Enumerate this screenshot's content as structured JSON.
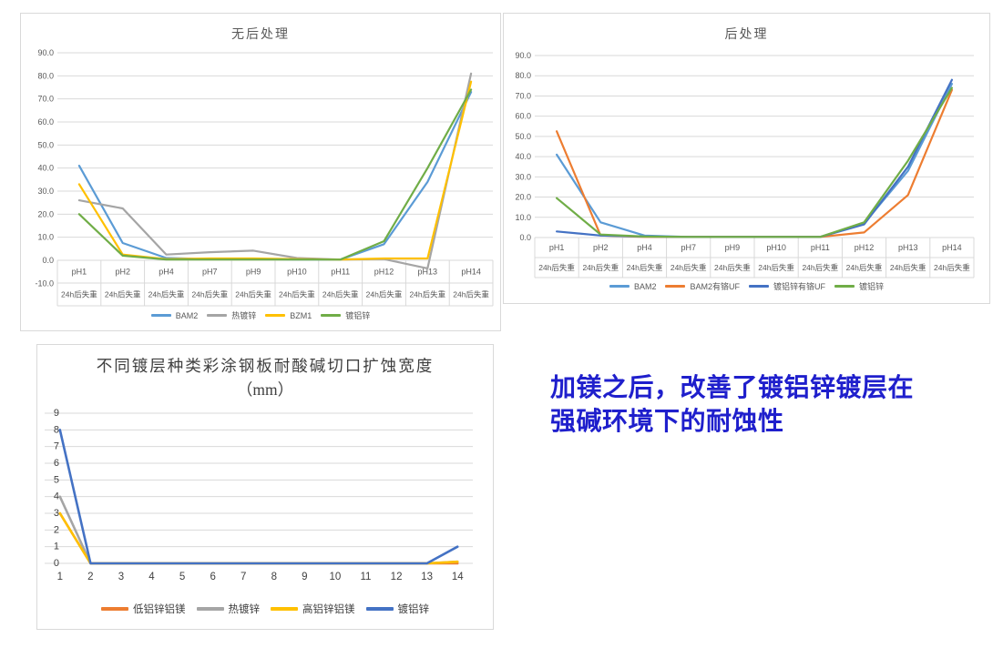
{
  "annotation": {
    "lines": [
      "加镁之后，改善了镀铝锌镀层在",
      "强碱环境下的耐蚀性"
    ],
    "color": "#1f1fcc"
  },
  "style": {
    "grid_color": "#d9d9d9",
    "axis_text_color": "#595959",
    "dark_text_color": "#3f3f3f"
  },
  "chart_data": [
    {
      "id": "no-post-treatment",
      "type": "line",
      "title": "无后处理",
      "categories": [
        "pH1",
        "pH2",
        "pH4",
        "pH7",
        "pH9",
        "pH10",
        "pH11",
        "pH12",
        "pH13",
        "pH14"
      ],
      "category_sublabel": "24h后失重",
      "ylim": [
        -10,
        90
      ],
      "ytick_step": 10,
      "ytick_decimals": 1,
      "grid": true,
      "legend_position": "bottom",
      "series": [
        {
          "name": "BAM2",
          "color": "#5b9bd5",
          "values": [
            41,
            7.5,
            1,
            0.5,
            0.5,
            0.3,
            0.3,
            7,
            34,
            73
          ]
        },
        {
          "name": "热镀锌",
          "color": "#a5a5a5",
          "values": [
            26,
            22.5,
            2.5,
            3.5,
            4.2,
            1,
            0.3,
            0.5,
            -3.5,
            81
          ]
        },
        {
          "name": "BZM1",
          "color": "#ffc000",
          "values": [
            33,
            2.5,
            0.5,
            0.8,
            0.8,
            0.5,
            0.3,
            0.8,
            0.8,
            77.5
          ]
        },
        {
          "name": "镀铝锌",
          "color": "#70ad47",
          "values": [
            20,
            2,
            0.3,
            0.3,
            0.3,
            0.3,
            0.3,
            8.3,
            40,
            74
          ]
        }
      ]
    },
    {
      "id": "post-treatment",
      "type": "line",
      "title": "后处理",
      "categories": [
        "pH1",
        "pH2",
        "pH4",
        "pH7",
        "pH9",
        "pH10",
        "pH11",
        "pH12",
        "pH13",
        "pH14"
      ],
      "category_sublabel": "24h后失重",
      "ylim": [
        0,
        90
      ],
      "ytick_step": 10,
      "ytick_decimals": 1,
      "grid": true,
      "legend_position": "bottom",
      "series": [
        {
          "name": "BAM2",
          "color": "#5b9bd5",
          "values": [
            41,
            7.5,
            1,
            0.3,
            0.3,
            0.3,
            0.3,
            7,
            33,
            76
          ]
        },
        {
          "name": "BAM2有铬UF",
          "color": "#ed7d31",
          "values": [
            52.5,
            1,
            0.3,
            0.3,
            0.3,
            0.3,
            0.3,
            2.5,
            21,
            73
          ]
        },
        {
          "name": "镀铝锌有铬UF",
          "color": "#4472c4",
          "values": [
            3,
            1,
            0.5,
            0.3,
            0.3,
            0.3,
            0.3,
            6.5,
            35,
            78
          ]
        },
        {
          "name": "镀铝锌",
          "color": "#70ad47",
          "values": [
            19.5,
            1.5,
            0.5,
            0.3,
            0.3,
            0.3,
            0.3,
            7.5,
            38,
            74
          ]
        }
      ]
    },
    {
      "id": "cut-edge-corrosion-width",
      "type": "line",
      "title": "不同镀层种类彩涂钢板耐酸碱切口扩蚀宽度",
      "title_line2": "（mm）",
      "categories": [
        "1",
        "2",
        "3",
        "4",
        "5",
        "6",
        "7",
        "8",
        "9",
        "10",
        "11",
        "12",
        "13",
        "14"
      ],
      "ylim": [
        0,
        9
      ],
      "ytick_step": 1,
      "ytick_decimals": 0,
      "grid": true,
      "legend_position": "bottom",
      "series": [
        {
          "name": "低铝锌铝镁",
          "color": "#ed7d31",
          "values": [
            3,
            0,
            0,
            0,
            0,
            0,
            0,
            0,
            0,
            0,
            0,
            0,
            0,
            0
          ]
        },
        {
          "name": "热镀锌",
          "color": "#a5a5a5",
          "values": [
            4,
            0,
            0,
            0,
            0,
            0,
            0,
            0,
            0,
            0,
            0,
            0,
            0,
            0.1
          ]
        },
        {
          "name": "高铝锌铝镁",
          "color": "#ffc000",
          "values": [
            3,
            0,
            0,
            0,
            0,
            0,
            0,
            0,
            0,
            0,
            0,
            0,
            0,
            0.1
          ]
        },
        {
          "name": "镀铝锌",
          "color": "#4472c4",
          "values": [
            8,
            0,
            0,
            0,
            0,
            0,
            0,
            0,
            0,
            0,
            0,
            0,
            0,
            1
          ]
        }
      ]
    }
  ]
}
